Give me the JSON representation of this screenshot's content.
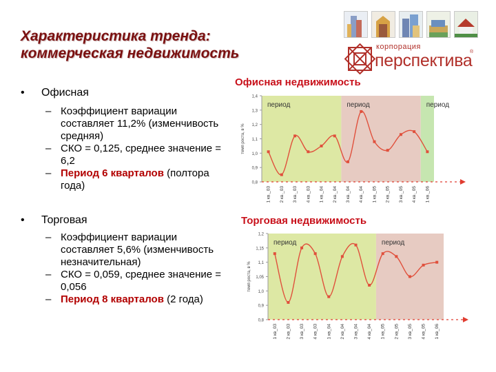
{
  "title": {
    "line1": "Характеристика тренда:",
    "line2": "коммерческая недвижимость"
  },
  "logo": {
    "small": "корпорация",
    "big": "перспектива",
    "tm": "®"
  },
  "bullets": [
    {
      "label": "Офисная",
      "items": [
        {
          "text": "Коэффициент вариации составляет 11,2% (изменчивость средняя)"
        },
        {
          "text": "СКО = 0,125, среднее значение = 6,2"
        },
        {
          "strong": "Период 6 кварталов",
          "text": "(полтора года)"
        }
      ]
    },
    {
      "label": "Торговая",
      "items": [
        {
          "text": "Коэффициент вариации составляет 5,6% (изменчивость незначительная)"
        },
        {
          "text": "СКО = 0,059, среднее значение = 0,056"
        },
        {
          "strong": "Период 8 кварталов",
          "text": "(2 года)"
        }
      ]
    }
  ],
  "chart_data": [
    {
      "type": "line",
      "title": "Офисная недвижимость",
      "ylabel": "темп роста, в %",
      "xlabel": "",
      "ylim": [
        0.8,
        1.4
      ],
      "yticks": [
        "0,8",
        "0,9",
        "1,0",
        "1,1",
        "1,2",
        "1,3",
        "1,4"
      ],
      "categories": [
        "1 кв._03",
        "2 кв._03",
        "3 кв._03",
        "4 кв._03",
        "1 кв._04",
        "2 кв._04",
        "3 кв._04",
        "4 кв._04",
        "1 кв._05",
        "2 кв._05",
        "3 кв._05",
        "4 кв._05",
        "1 кв._06"
      ],
      "values": [
        1.01,
        0.85,
        1.12,
        1.01,
        1.05,
        1.12,
        0.94,
        1.29,
        1.08,
        1.02,
        1.13,
        1.15,
        1.01
      ],
      "regions": [
        {
          "label": "период",
          "from": -0.5,
          "to": 5.5,
          "color": "#dde8a4"
        },
        {
          "label": "период",
          "from": 5.5,
          "to": 11.5,
          "color": "#e7cbc2"
        },
        {
          "label": "период",
          "from": 11.5,
          "to": 12.5,
          "color": "#c6e6b0"
        }
      ],
      "grid": false,
      "line_color": "#e0503c"
    },
    {
      "type": "line",
      "title": "Торговая недвижимость",
      "ylabel": "темп роста, в %",
      "xlabel": "",
      "ylim": [
        0.8,
        1.2
      ],
      "yticks": [
        "0,8",
        "0,9",
        "1,0",
        "1,05",
        "1,1",
        "1,15",
        "1,2"
      ],
      "categories": [
        "1 кв_03",
        "2 кв_03",
        "3 кв_03",
        "4 кв_03",
        "1 кв_04",
        "2 кв_04",
        "3 кв_04",
        "4 кв_04",
        "1 кв_05",
        "2 кв_05",
        "3 кв_05",
        "4 кв_05",
        "1 кв_06"
      ],
      "values": [
        1.13,
        0.92,
        1.15,
        1.13,
        0.96,
        1.12,
        1.16,
        1.02,
        1.13,
        1.12,
        1.05,
        1.09,
        1.1
      ],
      "regions": [
        {
          "label": "период",
          "from": -0.5,
          "to": 7.5,
          "color": "#dde8a4"
        },
        {
          "label": "период",
          "from": 7.5,
          "to": 12.5,
          "color": "#e7cbc2"
        }
      ],
      "grid": false,
      "line_color": "#e0503c"
    }
  ],
  "colors": {
    "title": "#7a1010",
    "accent": "#c8101a",
    "highlight": "#b20000",
    "logo": "#b1302a"
  }
}
